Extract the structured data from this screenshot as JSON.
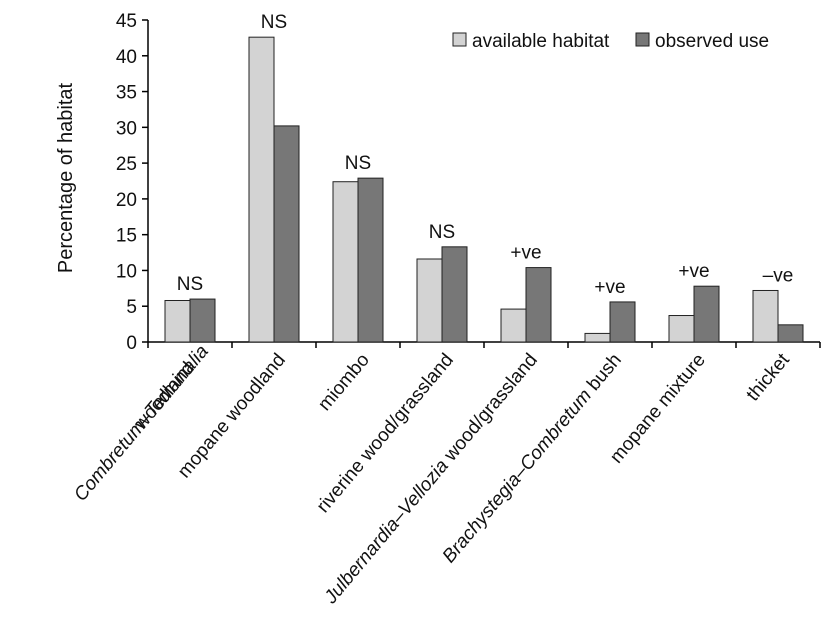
{
  "chart_data": {
    "type": "bar",
    "title": "",
    "xlabel": "",
    "ylabel": "Percentage of habitat",
    "ylim": [
      0,
      45
    ],
    "yticks": [
      0,
      5,
      10,
      15,
      20,
      25,
      30,
      35,
      40,
      45
    ],
    "grid": false,
    "legend_position": "top-right",
    "categories": [
      {
        "line1": [
          {
            "text": "Combretum–Terminalia",
            "italic": true
          }
        ],
        "line2": [
          {
            "text": "woodland",
            "italic": false
          }
        ]
      },
      {
        "line1": [
          {
            "text": "mopane woodland",
            "italic": false
          }
        ]
      },
      {
        "line1": [
          {
            "text": "miombo",
            "italic": false
          }
        ]
      },
      {
        "line1": [
          {
            "text": "riverine wood/grassland",
            "italic": false
          }
        ]
      },
      {
        "line1": [
          {
            "text": "Julbernardia–Vellozia",
            "italic": true
          },
          {
            "text": " wood/grassland",
            "italic": false
          }
        ]
      },
      {
        "line1": [
          {
            "text": "Brachystegia–Combretum",
            "italic": true
          },
          {
            "text": " bush",
            "italic": false
          }
        ]
      },
      {
        "line1": [
          {
            "text": "mopane mixture",
            "italic": false
          }
        ]
      },
      {
        "line1": [
          {
            "text": "thicket",
            "italic": false
          }
        ]
      }
    ],
    "series": [
      {
        "name": "available habitat",
        "color": "#d3d3d3",
        "values": [
          5.8,
          42.6,
          22.4,
          11.6,
          4.6,
          1.2,
          3.7,
          7.2
        ]
      },
      {
        "name": "observed use",
        "color": "#777777",
        "values": [
          6.0,
          30.2,
          22.9,
          13.3,
          10.4,
          5.6,
          7.8,
          2.4
        ]
      }
    ],
    "annotations": [
      "NS",
      "NS",
      "NS",
      "NS",
      "+ve",
      "+ve",
      "+ve",
      "–ve"
    ]
  }
}
